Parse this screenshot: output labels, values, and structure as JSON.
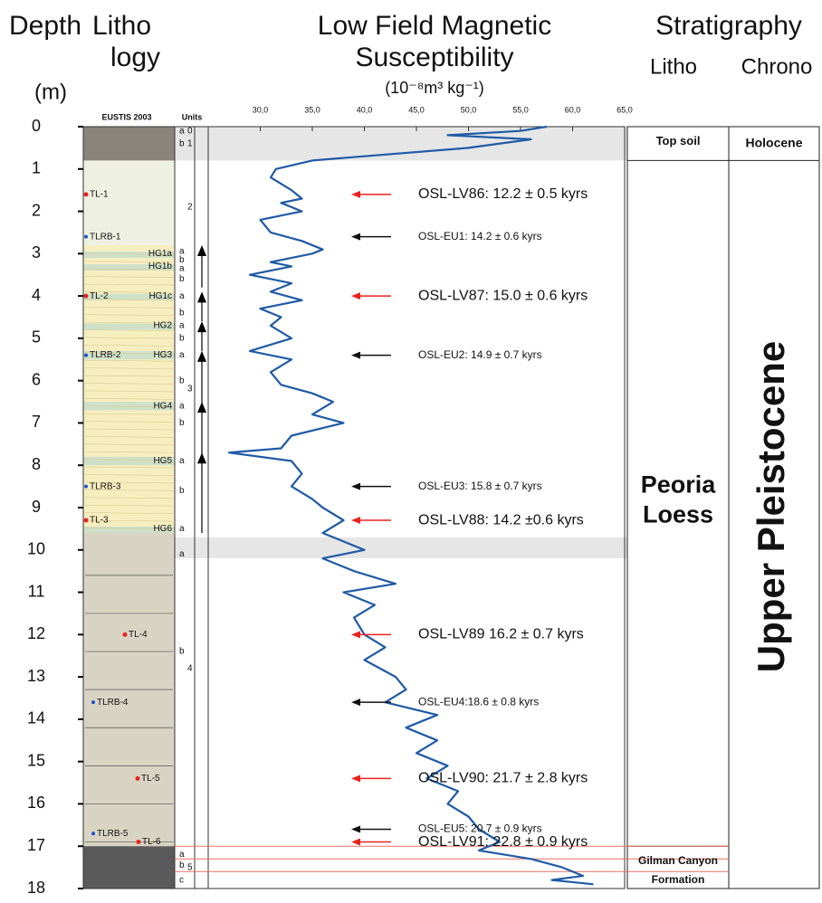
{
  "chart_data": {
    "type": "line",
    "header": {
      "depth": "Depth",
      "litho": "Litho",
      "logy": "logy",
      "unit_m": "(m)",
      "title_1": "Low Field Magnetic",
      "title_2": "Susceptibility",
      "x_unit": "(10⁻⁸m³ kg⁻¹)",
      "stratigraphy": "Stratigraphy",
      "strat_litho": "Litho",
      "strat_chrono": "Chrono",
      "eustis": "EUSTIS 2003",
      "units": "Units"
    },
    "ylim": [
      0,
      18
    ],
    "yticks": [
      0,
      1,
      2,
      3,
      4,
      5,
      6,
      7,
      8,
      9,
      10,
      11,
      12,
      13,
      14,
      15,
      16,
      17,
      18
    ],
    "xlim": [
      25,
      65
    ],
    "xticks": [
      {
        "value": 30,
        "label": "30,0"
      },
      {
        "value": 35,
        "label": "35,0"
      },
      {
        "value": 40,
        "label": "40,0"
      },
      {
        "value": 45,
        "label": "45,0"
      },
      {
        "value": 50,
        "label": "50,0"
      },
      {
        "value": 55,
        "label": "55,0"
      },
      {
        "value": 60,
        "label": "60,0"
      },
      {
        "value": 65,
        "label": "65,0"
      }
    ],
    "color": "#1f5aa6",
    "depth": [
      0,
      0.1,
      0.2,
      0.3,
      0.5,
      0.7,
      0.8,
      1.0,
      1.2,
      1.5,
      1.7,
      1.8,
      2.0,
      2.2,
      2.5,
      2.7,
      2.9,
      3.0,
      3.2,
      3.3,
      3.5,
      3.7,
      3.9,
      4.1,
      4.3,
      4.5,
      4.7,
      5.0,
      5.3,
      5.5,
      5.8,
      6.1,
      6.3,
      6.5,
      6.8,
      7.0,
      7.3,
      7.6,
      7.7,
      7.9,
      8.2,
      8.5,
      8.8,
      9.0,
      9.3,
      9.6,
      9.8,
      10.0,
      10.2,
      10.5,
      10.8,
      11.0,
      11.3,
      11.6,
      12.0,
      12.3,
      12.6,
      13.0,
      13.3,
      13.6,
      13.9,
      14.2,
      14.5,
      14.8,
      15.1,
      15.4,
      15.7,
      16.0,
      16.3,
      16.6,
      16.9,
      17.1,
      17.3,
      17.5,
      17.7,
      17.8,
      17.9
    ],
    "values": [
      57.5,
      55,
      48,
      56,
      50,
      40,
      35,
      31.5,
      31,
      33,
      34,
      32,
      34,
      30,
      31,
      34,
      36,
      35,
      31,
      33,
      29,
      33,
      31,
      34,
      30,
      32,
      31,
      33,
      29,
      33,
      31,
      32,
      35,
      37,
      35,
      38,
      33,
      32,
      27,
      33,
      34,
      33,
      35,
      36,
      38,
      36,
      38,
      40,
      36,
      39,
      43,
      38,
      41,
      39,
      40,
      42,
      40,
      43,
      44,
      42,
      47,
      44,
      47,
      45,
      48,
      46,
      49,
      48,
      50,
      51,
      53,
      51,
      56,
      59,
      61,
      58,
      62
    ],
    "annotations": [
      {
        "text": "OSL-LV86: 12.2 ± 0.5  kyrs",
        "color": "#e8231f"
      },
      {
        "text": "OSL-EU1: 14.2 ± 0.6 kyrs",
        "color": "#111111"
      },
      {
        "text": "OSL-LV87: 15.0 ± 0.6 kyrs",
        "color": "#e8231f"
      },
      {
        "text": "OSL-EU2: 14.9 ± 0.7 kyrs",
        "color": "#111111"
      },
      {
        "text": "OSL-EU3: 15.8 ± 0.7 kyrs",
        "color": "#111111"
      },
      {
        "text": "OSL-LV88: 14.2 ±0.6 kyrs",
        "color": "#e8231f"
      },
      {
        "text": "OSL-LV89 16.2 ± 0.7 kyrs",
        "color": "#e8231f"
      },
      {
        "text": "OSL-EU4:18.6 ± 0.8 kyrs",
        "color": "#111111"
      },
      {
        "text": "OSL-LV90: 21.7 ± 2.8 kyrs",
        "color": "#e8231f"
      },
      {
        "text": "OSL-EU5: 20.7 ± 0.9 kyrs",
        "color": "#111111"
      },
      {
        "text": "OSL-LV91: 22.8 ± 0.9 kyrs",
        "color": "#e8231f"
      }
    ],
    "samples": [
      "TL-1",
      "TLRB-1",
      "TL-2",
      "TLRB-2",
      "TLRB-3",
      "TL-3",
      "TL-4",
      "TLRB-4",
      "TL-5",
      "TLRB-5",
      "TL-6"
    ],
    "horizons": [
      "HG1a",
      "HG1b",
      "HG1c",
      "HG2",
      "HG3",
      "HG4",
      "HG5",
      "HG6"
    ],
    "subunits": [
      "a",
      "b",
      "a",
      "b",
      "a",
      "b",
      "a",
      "b",
      "a",
      "b",
      "a",
      "b",
      "a",
      "b",
      "a",
      "b",
      "a",
      "a",
      "b",
      "a",
      "b",
      "c"
    ],
    "unit_numbers": [
      "0",
      "1",
      "2",
      "3",
      "4",
      "5"
    ],
    "stratigraphy": {
      "top_soil": "Top soil",
      "holocene": "Holocene",
      "peoria_1": "Peoria",
      "peoria_2": "Loess",
      "upper_pleistocene": "Upper Pleistocene",
      "gilman_1": "Gilman Canyon",
      "gilman_2": "Formation"
    }
  }
}
